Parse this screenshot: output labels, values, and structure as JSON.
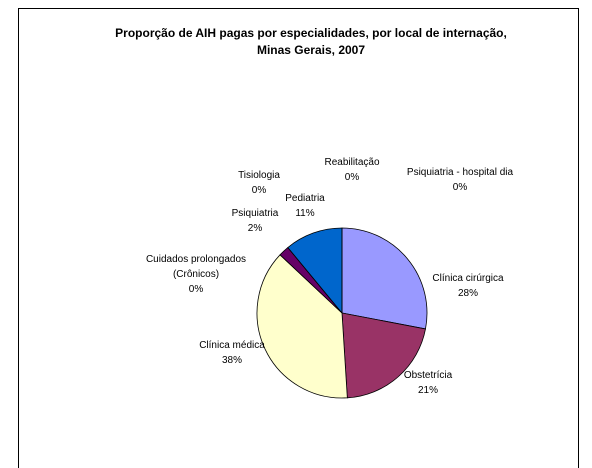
{
  "chart_data": {
    "type": "pie",
    "title": "Proporção de AIH pagas por especialidades, por local de internação, Minas Gerais, 2007",
    "categories": [
      "Clínica cirúrgica",
      "Obstetrícia",
      "Clínica médica",
      "Cuidados prolongados (Crônicos)",
      "Psiquiatria",
      "Tisiologia",
      "Pediatria",
      "Reabilitação",
      "Psiquiatria - hospital dia"
    ],
    "values": [
      28,
      21,
      38,
      0,
      2,
      0,
      11,
      0,
      0
    ],
    "value_labels": [
      "28%",
      "21%",
      "38%",
      "0%",
      "2%",
      "0%",
      "11%",
      "0%",
      "0%"
    ],
    "colors": [
      "#9999ff",
      "#993366",
      "#ffffcc",
      "#ccffff",
      "#660066",
      "#ff8080",
      "#0066cc",
      "#ccccff",
      "#000080"
    ]
  }
}
